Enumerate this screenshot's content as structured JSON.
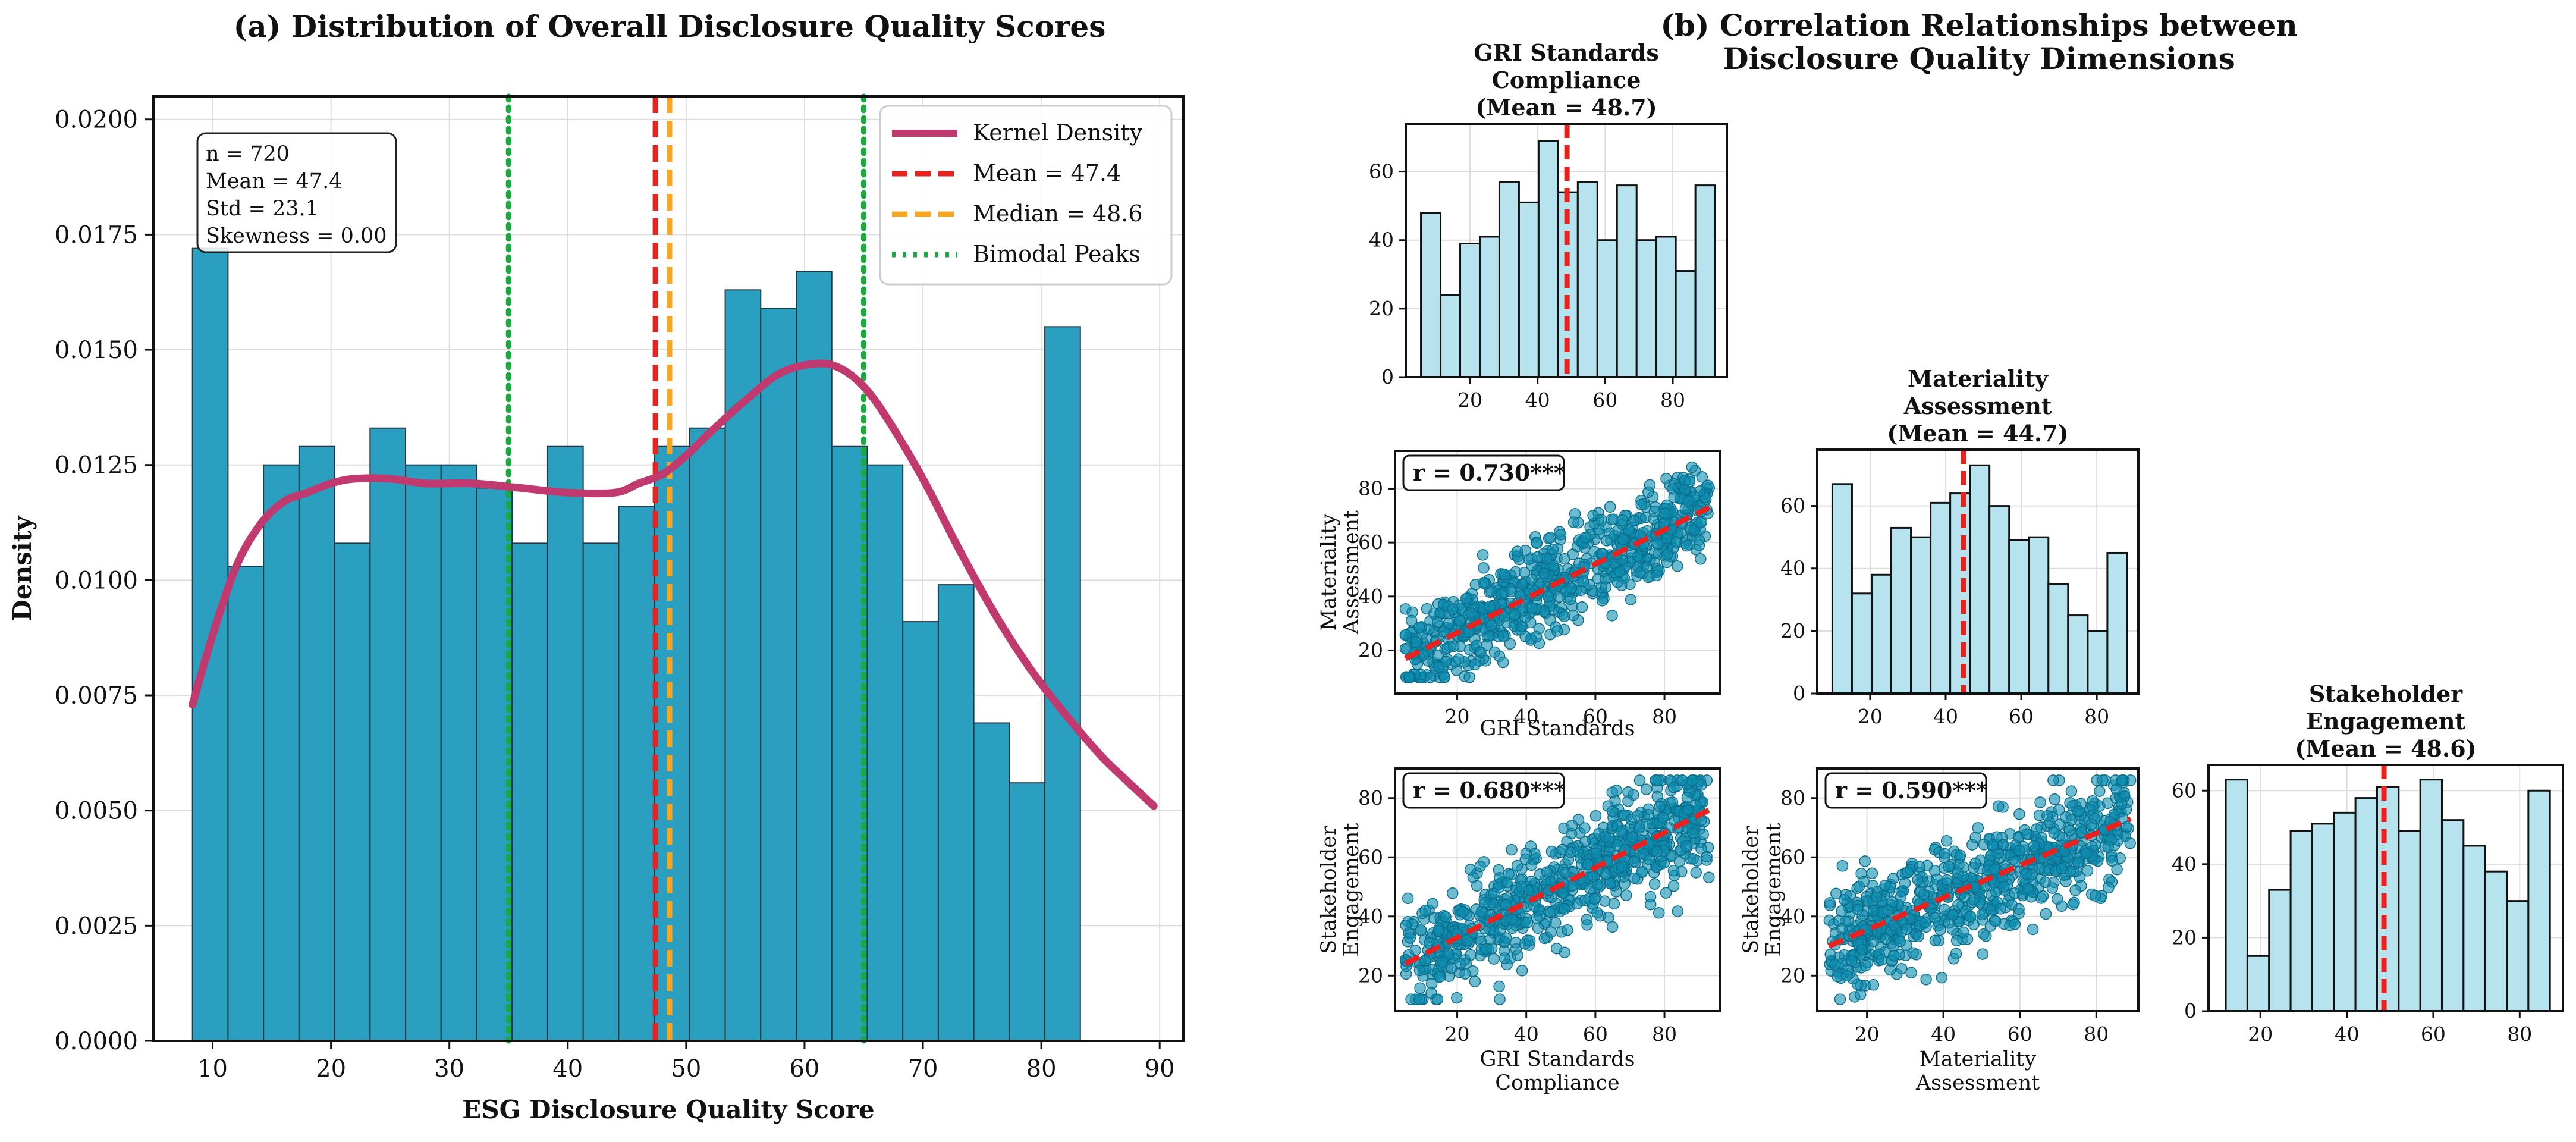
{
  "colors": {
    "hist_main": "#2a9fc0",
    "hist_edge": "#1f3a44",
    "kde": "#c0396f",
    "mean": "#e8221e",
    "median": "#f5a623",
    "peaks": "#1aab3f",
    "hist_small": "#b7e3ee",
    "scatter": "#0e8db0",
    "grid": "#dddddd"
  },
  "chart_data": [
    {
      "id": "a",
      "type": "bar",
      "title": "(a) Distribution of Overall Disclosure Quality Scores",
      "xlabel": "ESG Disclosure Quality Score",
      "ylabel": "Density",
      "xlim": [
        5,
        92
      ],
      "ylim": [
        0,
        0.0205
      ],
      "xticks": [
        10,
        20,
        30,
        40,
        50,
        60,
        70,
        80,
        90
      ],
      "yticks": [
        "0.0000",
        "0.0025",
        "0.0050",
        "0.0075",
        "0.0100",
        "0.0125",
        "0.0150",
        "0.0175",
        "0.0200"
      ],
      "grid": true,
      "bin_start": 8.3,
      "bin_width": 3.0,
      "values": [
        0.0172,
        0.0103,
        0.0125,
        0.0129,
        0.0108,
        0.0133,
        0.0125,
        0.0125,
        0.012,
        0.0108,
        0.0129,
        0.0108,
        0.0116,
        0.0129,
        0.0133,
        0.0163,
        0.0159,
        0.0167,
        0.0129,
        0.0125,
        0.0091,
        0.0099,
        0.0069,
        0.0056,
        0.0155
      ],
      "kde": {
        "name": "Kernel Density",
        "x": [
          8.3,
          10,
          12,
          14,
          16,
          18,
          20,
          22,
          25,
          28,
          32,
          36,
          40,
          44,
          46,
          48,
          50,
          52,
          55,
          58,
          61,
          63,
          65,
          67,
          70,
          73,
          76,
          79,
          82,
          85,
          87,
          89.5
        ],
        "y": [
          0.0073,
          0.0088,
          0.0103,
          0.0112,
          0.0117,
          0.0119,
          0.0121,
          0.0122,
          0.0122,
          0.0121,
          0.0121,
          0.012,
          0.0119,
          0.0119,
          0.0121,
          0.0123,
          0.0127,
          0.0132,
          0.0139,
          0.0145,
          0.0147,
          0.0146,
          0.0142,
          0.0135,
          0.0122,
          0.0107,
          0.0093,
          0.0081,
          0.0071,
          0.0062,
          0.0057,
          0.0051
        ]
      },
      "mean": {
        "label": "Mean = 47.4",
        "value": 47.4
      },
      "median": {
        "label": "Median = 48.6",
        "value": 48.6
      },
      "peaks": {
        "label": "Bimodal Peaks",
        "values": [
          35.0,
          65.0
        ]
      },
      "stats": [
        "n = 720",
        "Mean = 47.4",
        "Std = 23.1",
        "Skewness = 0.00"
      ],
      "legend": [
        "Kernel Density",
        "Mean = 47.4",
        "Median = 48.6",
        "Bimodal Peaks"
      ],
      "legend_position": "top-right"
    },
    {
      "id": "b",
      "type": "scatter",
      "title": [
        "(b) Correlation Relationships between",
        "Disclosure Quality Dimensions"
      ],
      "diagonal": [
        {
          "title": [
            "GRI Standards",
            "Compliance",
            "(Mean = 48.7)"
          ],
          "type": "bar",
          "xlim": [
            1,
            96
          ],
          "ylim": [
            0,
            74
          ],
          "xticks": [
            20,
            40,
            60,
            80
          ],
          "yticks": [
            0,
            20,
            40,
            60
          ],
          "bin_start": 5.5,
          "bin_width": 5.8,
          "values": [
            48,
            24,
            39,
            41,
            57,
            51,
            69,
            54,
            57,
            40,
            56,
            40,
            41,
            31,
            56
          ],
          "mean": 48.7
        },
        {
          "title": [
            "Materiality",
            "Assessment",
            "(Mean = 44.7)"
          ],
          "type": "bar",
          "xlim": [
            6,
            91
          ],
          "ylim": [
            0,
            78
          ],
          "xticks": [
            20,
            40,
            60,
            80
          ],
          "yticks": [
            0,
            20,
            40,
            60
          ],
          "bin_start": 10,
          "bin_width": 5.2,
          "values": [
            67,
            32,
            38,
            53,
            50,
            61,
            64,
            73,
            60,
            49,
            50,
            35,
            25,
            20,
            45
          ],
          "mean": 44.7
        },
        {
          "title": [
            "Stakeholder",
            "Engagement",
            "(Mean = 48.6)"
          ],
          "type": "bar",
          "xlim": [
            8,
            90
          ],
          "ylim": [
            0,
            67
          ],
          "xticks": [
            20,
            40,
            60,
            80
          ],
          "yticks": [
            0,
            20,
            40,
            60
          ],
          "bin_start": 12,
          "bin_width": 5.0,
          "values": [
            63,
            15,
            33,
            49,
            51,
            54,
            58,
            61,
            49,
            63,
            52,
            45,
            38,
            30,
            60
          ],
          "mean": 48.6
        }
      ],
      "scatters": [
        {
          "r_label": "r = 0.730***",
          "xlabel": [
            "GRI Standards"
          ],
          "ylabel": [
            "Materiality",
            "Assessment"
          ],
          "xlim": [
            2,
            96
          ],
          "ylim": [
            4,
            94
          ],
          "xticks": [
            20,
            40,
            60,
            80
          ],
          "yticks": [
            20,
            40,
            60,
            80
          ],
          "r": 0.73,
          "fit": [
            [
              5,
              17
            ],
            [
              93,
              73
            ]
          ],
          "clip": [
            10,
            88
          ]
        },
        {
          "r_label": "r = 0.680***",
          "xlabel": [
            "GRI Standards",
            "Compliance"
          ],
          "ylabel": [
            "Stakeholder",
            "Engagement"
          ],
          "xlim": [
            2,
            96
          ],
          "ylim": [
            8,
            90
          ],
          "xticks": [
            20,
            40,
            60,
            80
          ],
          "yticks": [
            20,
            40,
            60,
            80
          ],
          "r": 0.68,
          "fit": [
            [
              5,
              24
            ],
            [
              93,
              76
            ]
          ],
          "clip": [
            12,
            86
          ]
        },
        {
          "r_label": "r = 0.590***",
          "xlabel": [
            "Materiality",
            "Assessment"
          ],
          "ylabel": [
            "Stakeholder",
            "Engagement"
          ],
          "xlim": [
            7,
            91
          ],
          "ylim": [
            8,
            90
          ],
          "xticks": [
            20,
            40,
            60,
            80
          ],
          "yticks": [
            20,
            40,
            60,
            80
          ],
          "r": 0.59,
          "fit": [
            [
              10,
              30
            ],
            [
              89,
              73
            ]
          ],
          "clip": [
            12,
            86
          ]
        }
      ]
    }
  ]
}
